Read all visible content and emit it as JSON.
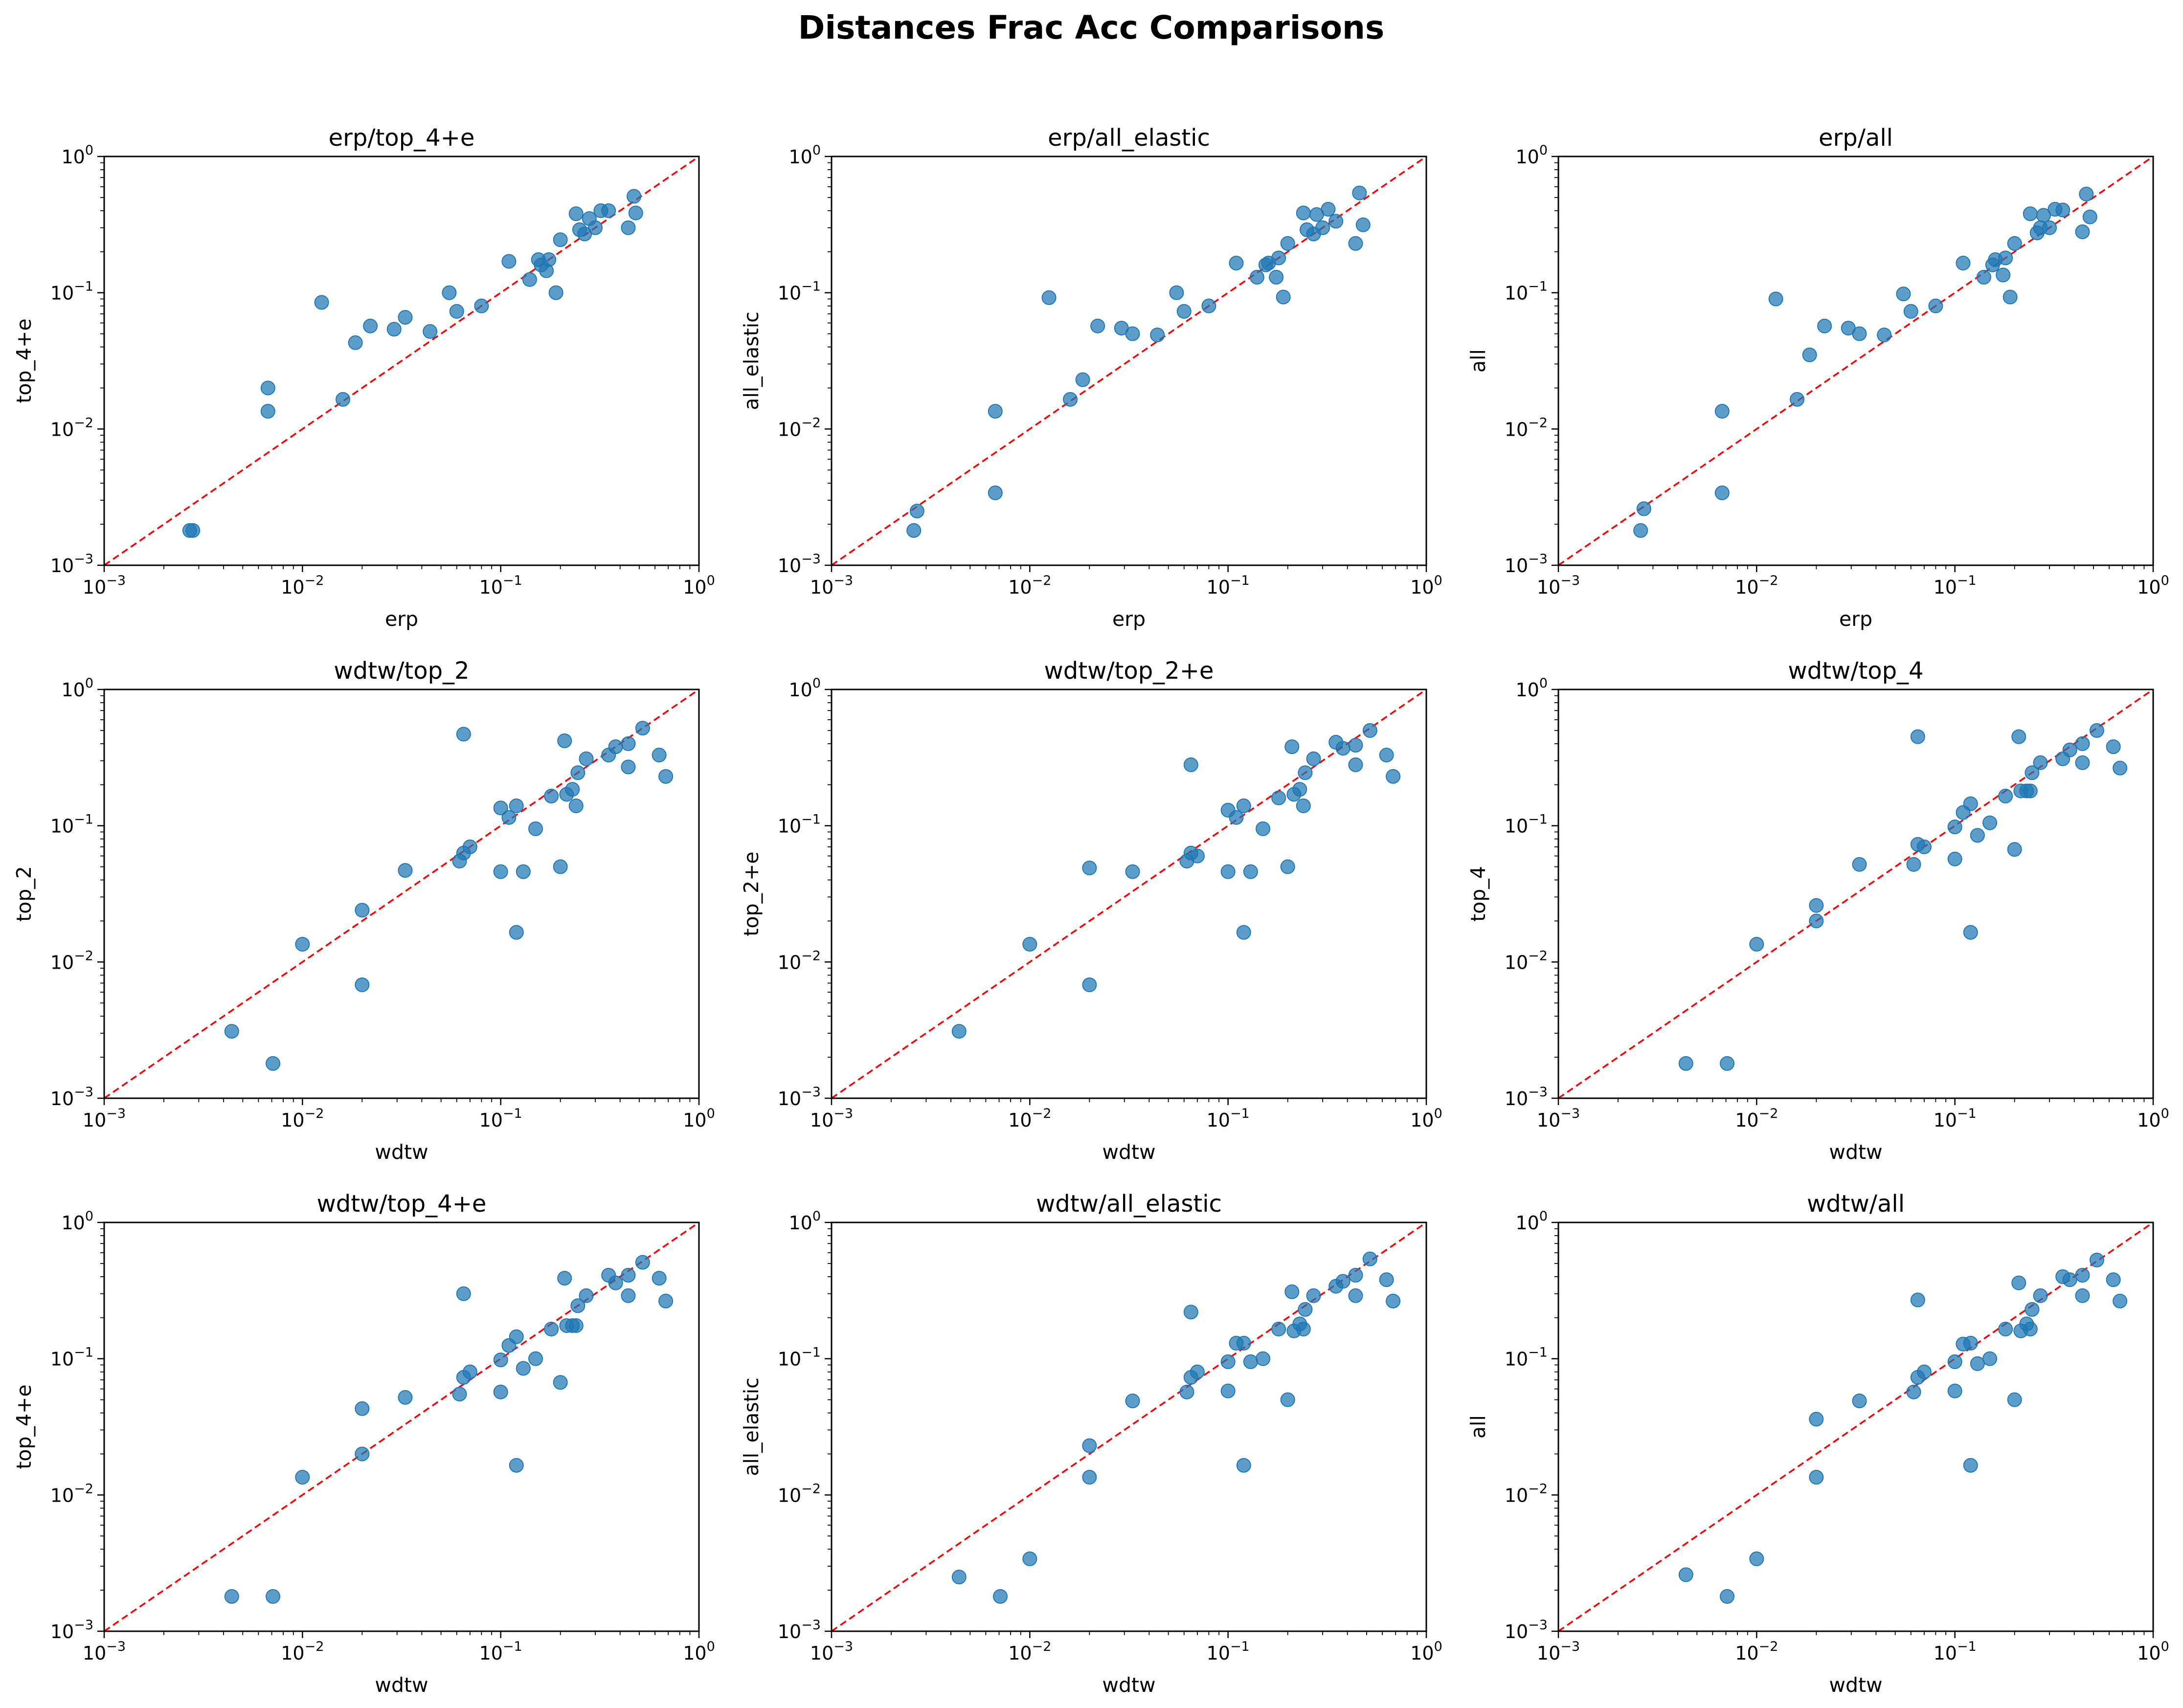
{
  "figure": {
    "title": "Distances Frac Acc Comparisons",
    "point_color": "#1f77b4",
    "diagonal_color": "#ff0000"
  },
  "chart_data": [
    {
      "type": "scatter",
      "title": "erp/top_4+e",
      "xlabel": "erp",
      "ylabel": "top_4+e",
      "xscale": "log",
      "yscale": "log",
      "xlim": [
        0.001,
        1
      ],
      "ylim": [
        0.001,
        1
      ],
      "reference_line": "y = x",
      "points": [
        [
          0.0027,
          0.0018
        ],
        [
          0.0028,
          0.0018
        ],
        [
          0.0067,
          0.02
        ],
        [
          0.0067,
          0.0135
        ],
        [
          0.0125,
          0.085
        ],
        [
          0.016,
          0.0165
        ],
        [
          0.0185,
          0.043
        ],
        [
          0.022,
          0.057
        ],
        [
          0.029,
          0.054
        ],
        [
          0.033,
          0.066
        ],
        [
          0.044,
          0.052
        ],
        [
          0.055,
          0.1
        ],
        [
          0.06,
          0.073
        ],
        [
          0.08,
          0.08
        ],
        [
          0.11,
          0.17
        ],
        [
          0.14,
          0.125
        ],
        [
          0.155,
          0.175
        ],
        [
          0.16,
          0.16
        ],
        [
          0.17,
          0.145
        ],
        [
          0.175,
          0.175
        ],
        [
          0.19,
          0.1
        ],
        [
          0.2,
          0.245
        ],
        [
          0.24,
          0.38
        ],
        [
          0.25,
          0.29
        ],
        [
          0.265,
          0.27
        ],
        [
          0.28,
          0.35
        ],
        [
          0.3,
          0.3
        ],
        [
          0.32,
          0.4
        ],
        [
          0.35,
          0.4
        ],
        [
          0.44,
          0.3
        ],
        [
          0.47,
          0.51
        ],
        [
          0.48,
          0.385
        ]
      ]
    },
    {
      "type": "scatter",
      "title": "erp/all_elastic",
      "xlabel": "erp",
      "ylabel": "all_elastic",
      "xscale": "log",
      "yscale": "log",
      "xlim": [
        0.001,
        1
      ],
      "ylim": [
        0.001,
        1
      ],
      "reference_line": "y = x",
      "points": [
        [
          0.0026,
          0.0018
        ],
        [
          0.0027,
          0.0025
        ],
        [
          0.0067,
          0.0135
        ],
        [
          0.0067,
          0.0034
        ],
        [
          0.0125,
          0.092
        ],
        [
          0.016,
          0.0165
        ],
        [
          0.0185,
          0.023
        ],
        [
          0.022,
          0.057
        ],
        [
          0.029,
          0.055
        ],
        [
          0.033,
          0.05
        ],
        [
          0.044,
          0.049
        ],
        [
          0.055,
          0.1
        ],
        [
          0.06,
          0.073
        ],
        [
          0.08,
          0.08
        ],
        [
          0.11,
          0.165
        ],
        [
          0.14,
          0.13
        ],
        [
          0.155,
          0.16
        ],
        [
          0.16,
          0.165
        ],
        [
          0.175,
          0.13
        ],
        [
          0.18,
          0.18
        ],
        [
          0.19,
          0.093
        ],
        [
          0.2,
          0.23
        ],
        [
          0.24,
          0.385
        ],
        [
          0.25,
          0.29
        ],
        [
          0.27,
          0.27
        ],
        [
          0.28,
          0.375
        ],
        [
          0.3,
          0.3
        ],
        [
          0.32,
          0.41
        ],
        [
          0.35,
          0.335
        ],
        [
          0.44,
          0.23
        ],
        [
          0.46,
          0.54
        ],
        [
          0.48,
          0.315
        ]
      ]
    },
    {
      "type": "scatter",
      "title": "erp/all",
      "xlabel": "erp",
      "ylabel": "all",
      "xscale": "log",
      "yscale": "log",
      "xlim": [
        0.001,
        1
      ],
      "ylim": [
        0.001,
        1
      ],
      "reference_line": "y = x",
      "points": [
        [
          0.0026,
          0.0018
        ],
        [
          0.0027,
          0.0026
        ],
        [
          0.0067,
          0.0135
        ],
        [
          0.0067,
          0.0034
        ],
        [
          0.0125,
          0.09
        ],
        [
          0.016,
          0.0165
        ],
        [
          0.0185,
          0.035
        ],
        [
          0.022,
          0.057
        ],
        [
          0.029,
          0.055
        ],
        [
          0.033,
          0.05
        ],
        [
          0.044,
          0.049
        ],
        [
          0.055,
          0.098
        ],
        [
          0.06,
          0.073
        ],
        [
          0.08,
          0.08
        ],
        [
          0.11,
          0.165
        ],
        [
          0.14,
          0.13
        ],
        [
          0.155,
          0.16
        ],
        [
          0.16,
          0.175
        ],
        [
          0.175,
          0.135
        ],
        [
          0.18,
          0.18
        ],
        [
          0.19,
          0.093
        ],
        [
          0.2,
          0.23
        ],
        [
          0.24,
          0.38
        ],
        [
          0.26,
          0.275
        ],
        [
          0.27,
          0.3
        ],
        [
          0.28,
          0.37
        ],
        [
          0.3,
          0.3
        ],
        [
          0.32,
          0.41
        ],
        [
          0.35,
          0.405
        ],
        [
          0.44,
          0.28
        ],
        [
          0.46,
          0.53
        ],
        [
          0.48,
          0.36
        ]
      ]
    },
    {
      "type": "scatter",
      "title": "wdtw/top_2",
      "xlabel": "wdtw",
      "ylabel": "top_2",
      "xscale": "log",
      "yscale": "log",
      "xlim": [
        0.001,
        1
      ],
      "ylim": [
        0.001,
        1
      ],
      "reference_line": "y = x",
      "points": [
        [
          0.0044,
          0.0031
        ],
        [
          0.0071,
          0.0018
        ],
        [
          0.01,
          0.0135
        ],
        [
          0.02,
          0.024
        ],
        [
          0.02,
          0.0068
        ],
        [
          0.033,
          0.047
        ],
        [
          0.062,
          0.055
        ],
        [
          0.065,
          0.063
        ],
        [
          0.065,
          0.47
        ],
        [
          0.07,
          0.07
        ],
        [
          0.1,
          0.135
        ],
        [
          0.1,
          0.046
        ],
        [
          0.11,
          0.115
        ],
        [
          0.12,
          0.14
        ],
        [
          0.12,
          0.0165
        ],
        [
          0.13,
          0.046
        ],
        [
          0.15,
          0.095
        ],
        [
          0.18,
          0.165
        ],
        [
          0.2,
          0.05
        ],
        [
          0.21,
          0.42
        ],
        [
          0.215,
          0.17
        ],
        [
          0.23,
          0.185
        ],
        [
          0.24,
          0.14
        ],
        [
          0.245,
          0.245
        ],
        [
          0.27,
          0.31
        ],
        [
          0.35,
          0.33
        ],
        [
          0.38,
          0.38
        ],
        [
          0.44,
          0.27
        ],
        [
          0.44,
          0.4
        ],
        [
          0.52,
          0.52
        ],
        [
          0.63,
          0.33
        ],
        [
          0.68,
          0.23
        ]
      ]
    },
    {
      "type": "scatter",
      "title": "wdtw/top_2+e",
      "xlabel": "wdtw",
      "ylabel": "top_2+e",
      "xscale": "log",
      "yscale": "log",
      "xlim": [
        0.001,
        1
      ],
      "ylim": [
        0.001,
        1
      ],
      "reference_line": "y = x",
      "points": [
        [
          0.0044,
          0.0031
        ],
        [
          0.01,
          0.0135
        ],
        [
          0.02,
          0.049
        ],
        [
          0.02,
          0.0068
        ],
        [
          0.033,
          0.046
        ],
        [
          0.062,
          0.055
        ],
        [
          0.065,
          0.063
        ],
        [
          0.065,
          0.28
        ],
        [
          0.07,
          0.06
        ],
        [
          0.1,
          0.13
        ],
        [
          0.1,
          0.046
        ],
        [
          0.11,
          0.115
        ],
        [
          0.12,
          0.14
        ],
        [
          0.12,
          0.0165
        ],
        [
          0.13,
          0.046
        ],
        [
          0.15,
          0.095
        ],
        [
          0.18,
          0.16
        ],
        [
          0.2,
          0.05
        ],
        [
          0.21,
          0.38
        ],
        [
          0.215,
          0.17
        ],
        [
          0.23,
          0.185
        ],
        [
          0.24,
          0.14
        ],
        [
          0.245,
          0.245
        ],
        [
          0.27,
          0.31
        ],
        [
          0.35,
          0.41
        ],
        [
          0.38,
          0.37
        ],
        [
          0.44,
          0.28
        ],
        [
          0.44,
          0.39
        ],
        [
          0.52,
          0.5
        ],
        [
          0.63,
          0.33
        ],
        [
          0.68,
          0.23
        ]
      ]
    },
    {
      "type": "scatter",
      "title": "wdtw/top_4",
      "xlabel": "wdtw",
      "ylabel": "top_4",
      "xscale": "log",
      "yscale": "log",
      "xlim": [
        0.001,
        1
      ],
      "ylim": [
        0.001,
        1
      ],
      "reference_line": "y = x",
      "points": [
        [
          0.0044,
          0.0018
        ],
        [
          0.0071,
          0.0018
        ],
        [
          0.01,
          0.0135
        ],
        [
          0.02,
          0.026
        ],
        [
          0.02,
          0.02
        ],
        [
          0.033,
          0.052
        ],
        [
          0.062,
          0.052
        ],
        [
          0.065,
          0.073
        ],
        [
          0.065,
          0.45
        ],
        [
          0.07,
          0.07
        ],
        [
          0.1,
          0.098
        ],
        [
          0.1,
          0.057
        ],
        [
          0.11,
          0.125
        ],
        [
          0.12,
          0.145
        ],
        [
          0.12,
          0.0165
        ],
        [
          0.13,
          0.085
        ],
        [
          0.15,
          0.105
        ],
        [
          0.18,
          0.165
        ],
        [
          0.2,
          0.067
        ],
        [
          0.21,
          0.45
        ],
        [
          0.215,
          0.18
        ],
        [
          0.23,
          0.18
        ],
        [
          0.24,
          0.18
        ],
        [
          0.245,
          0.245
        ],
        [
          0.27,
          0.29
        ],
        [
          0.35,
          0.31
        ],
        [
          0.38,
          0.36
        ],
        [
          0.44,
          0.29
        ],
        [
          0.44,
          0.4
        ],
        [
          0.52,
          0.5
        ],
        [
          0.63,
          0.38
        ],
        [
          0.68,
          0.265
        ]
      ]
    },
    {
      "type": "scatter",
      "title": "wdtw/top_4+e",
      "xlabel": "wdtw",
      "ylabel": "top_4+e",
      "xscale": "log",
      "yscale": "log",
      "xlim": [
        0.001,
        1
      ],
      "ylim": [
        0.001,
        1
      ],
      "reference_line": "y = x",
      "points": [
        [
          0.0044,
          0.0018
        ],
        [
          0.0071,
          0.0018
        ],
        [
          0.01,
          0.0135
        ],
        [
          0.02,
          0.043
        ],
        [
          0.02,
          0.02
        ],
        [
          0.033,
          0.052
        ],
        [
          0.062,
          0.055
        ],
        [
          0.065,
          0.073
        ],
        [
          0.065,
          0.3
        ],
        [
          0.07,
          0.08
        ],
        [
          0.1,
          0.098
        ],
        [
          0.1,
          0.057
        ],
        [
          0.11,
          0.125
        ],
        [
          0.12,
          0.145
        ],
        [
          0.12,
          0.0165
        ],
        [
          0.13,
          0.085
        ],
        [
          0.15,
          0.1
        ],
        [
          0.18,
          0.165
        ],
        [
          0.2,
          0.067
        ],
        [
          0.21,
          0.39
        ],
        [
          0.215,
          0.175
        ],
        [
          0.23,
          0.175
        ],
        [
          0.24,
          0.175
        ],
        [
          0.245,
          0.245
        ],
        [
          0.27,
          0.29
        ],
        [
          0.35,
          0.41
        ],
        [
          0.38,
          0.36
        ],
        [
          0.44,
          0.29
        ],
        [
          0.44,
          0.41
        ],
        [
          0.52,
          0.51
        ],
        [
          0.63,
          0.39
        ],
        [
          0.68,
          0.265
        ]
      ]
    },
    {
      "type": "scatter",
      "title": "wdtw/all_elastic",
      "xlabel": "wdtw",
      "ylabel": "all_elastic",
      "xscale": "log",
      "yscale": "log",
      "xlim": [
        0.001,
        1
      ],
      "ylim": [
        0.001,
        1
      ],
      "reference_line": "y = x",
      "points": [
        [
          0.0044,
          0.0025
        ],
        [
          0.0071,
          0.0018
        ],
        [
          0.01,
          0.0034
        ],
        [
          0.02,
          0.023
        ],
        [
          0.02,
          0.0135
        ],
        [
          0.033,
          0.049
        ],
        [
          0.062,
          0.057
        ],
        [
          0.065,
          0.073
        ],
        [
          0.065,
          0.22
        ],
        [
          0.07,
          0.08
        ],
        [
          0.1,
          0.095
        ],
        [
          0.1,
          0.058
        ],
        [
          0.11,
          0.13
        ],
        [
          0.12,
          0.13
        ],
        [
          0.12,
          0.0165
        ],
        [
          0.13,
          0.095
        ],
        [
          0.15,
          0.1
        ],
        [
          0.18,
          0.165
        ],
        [
          0.2,
          0.05
        ],
        [
          0.21,
          0.31
        ],
        [
          0.215,
          0.16
        ],
        [
          0.23,
          0.18
        ],
        [
          0.24,
          0.165
        ],
        [
          0.245,
          0.23
        ],
        [
          0.27,
          0.29
        ],
        [
          0.35,
          0.34
        ],
        [
          0.38,
          0.37
        ],
        [
          0.44,
          0.29
        ],
        [
          0.44,
          0.41
        ],
        [
          0.52,
          0.54
        ],
        [
          0.63,
          0.38
        ],
        [
          0.68,
          0.265
        ]
      ]
    },
    {
      "type": "scatter",
      "title": "wdtw/all",
      "xlabel": "wdtw",
      "ylabel": "all",
      "xscale": "log",
      "yscale": "log",
      "xlim": [
        0.001,
        1
      ],
      "ylim": [
        0.001,
        1
      ],
      "reference_line": "y = x",
      "points": [
        [
          0.0044,
          0.0026
        ],
        [
          0.0071,
          0.0018
        ],
        [
          0.01,
          0.0034
        ],
        [
          0.02,
          0.036
        ],
        [
          0.02,
          0.0135
        ],
        [
          0.033,
          0.049
        ],
        [
          0.062,
          0.057
        ],
        [
          0.065,
          0.073
        ],
        [
          0.065,
          0.27
        ],
        [
          0.07,
          0.08
        ],
        [
          0.1,
          0.095
        ],
        [
          0.1,
          0.058
        ],
        [
          0.11,
          0.128
        ],
        [
          0.12,
          0.13
        ],
        [
          0.12,
          0.0165
        ],
        [
          0.13,
          0.092
        ],
        [
          0.15,
          0.1
        ],
        [
          0.18,
          0.165
        ],
        [
          0.2,
          0.05
        ],
        [
          0.21,
          0.36
        ],
        [
          0.215,
          0.16
        ],
        [
          0.23,
          0.18
        ],
        [
          0.24,
          0.165
        ],
        [
          0.245,
          0.23
        ],
        [
          0.27,
          0.29
        ],
        [
          0.35,
          0.4
        ],
        [
          0.38,
          0.38
        ],
        [
          0.44,
          0.29
        ],
        [
          0.44,
          0.41
        ],
        [
          0.52,
          0.53
        ],
        [
          0.63,
          0.38
        ],
        [
          0.68,
          0.265
        ]
      ]
    }
  ]
}
